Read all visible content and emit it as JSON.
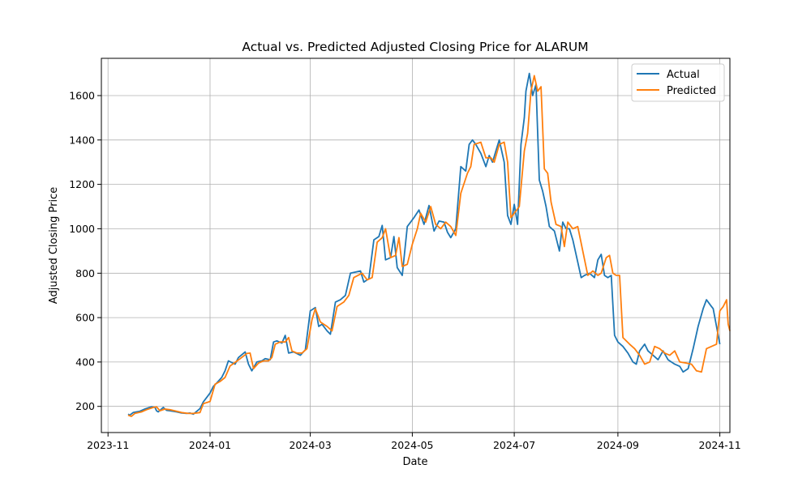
{
  "chart_data": {
    "type": "line",
    "title": "Actual vs. Predicted Adjusted Closing Price for ALARUM",
    "xlabel": "Date",
    "ylabel": "Adjusted Closing Price",
    "x_tick_labels": [
      "2023-11",
      "2024-01",
      "2024-03",
      "2024-05",
      "2024-07",
      "2024-09",
      "2024-11"
    ],
    "x_tick_dates": [
      "2023-11-01",
      "2024-01-01",
      "2024-03-01",
      "2024-05-01",
      "2024-07-01",
      "2024-09-01",
      "2024-11-01"
    ],
    "y_ticks": [
      200,
      400,
      600,
      800,
      1000,
      1200,
      1400,
      1600
    ],
    "xlim": [
      "2023-10-28",
      "2024-11-07"
    ],
    "ylim": [
      82,
      1768
    ],
    "grid": true,
    "legend_position": "top-right",
    "series": [
      {
        "name": "Actual",
        "color": "#1f77b4",
        "points": [
          [
            "2023-11-13",
            165
          ],
          [
            "2023-11-14",
            160
          ],
          [
            "2023-11-16",
            172
          ],
          [
            "2023-11-20",
            178
          ],
          [
            "2023-11-23",
            188
          ],
          [
            "2023-11-27",
            198
          ],
          [
            "2023-11-29",
            196
          ],
          [
            "2023-11-30",
            180
          ],
          [
            "2023-12-01",
            175
          ],
          [
            "2023-12-04",
            195
          ],
          [
            "2023-12-06",
            182
          ],
          [
            "2023-12-08",
            180
          ],
          [
            "2023-12-12",
            175
          ],
          [
            "2023-12-15",
            170
          ],
          [
            "2023-12-18",
            168
          ],
          [
            "2023-12-20",
            170
          ],
          [
            "2023-12-22",
            165
          ],
          [
            "2023-12-26",
            190
          ],
          [
            "2023-12-28",
            220
          ],
          [
            "2024-01-01",
            260
          ],
          [
            "2024-01-03",
            290
          ],
          [
            "2024-01-05",
            305
          ],
          [
            "2024-01-08",
            330
          ],
          [
            "2024-01-10",
            360
          ],
          [
            "2024-01-12",
            405
          ],
          [
            "2024-01-16",
            390
          ],
          [
            "2024-01-18",
            420
          ],
          [
            "2024-01-22",
            445
          ],
          [
            "2024-01-24",
            390
          ],
          [
            "2024-01-26",
            360
          ],
          [
            "2024-01-29",
            400
          ],
          [
            "2024-02-01",
            405
          ],
          [
            "2024-02-03",
            415
          ],
          [
            "2024-02-06",
            410
          ],
          [
            "2024-02-08",
            490
          ],
          [
            "2024-02-10",
            495
          ],
          [
            "2024-02-13",
            485
          ],
          [
            "2024-02-15",
            520
          ],
          [
            "2024-02-17",
            440
          ],
          [
            "2024-02-20",
            445
          ],
          [
            "2024-02-24",
            430
          ],
          [
            "2024-02-27",
            455
          ],
          [
            "2024-03-01",
            630
          ],
          [
            "2024-03-04",
            645
          ],
          [
            "2024-03-06",
            560
          ],
          [
            "2024-03-08",
            570
          ],
          [
            "2024-03-11",
            540
          ],
          [
            "2024-03-13",
            525
          ],
          [
            "2024-03-16",
            670
          ],
          [
            "2024-03-19",
            680
          ],
          [
            "2024-03-22",
            700
          ],
          [
            "2024-03-25",
            800
          ],
          [
            "2024-03-28",
            805
          ],
          [
            "2024-03-31",
            810
          ],
          [
            "2024-04-02",
            760
          ],
          [
            "2024-04-05",
            775
          ],
          [
            "2024-04-08",
            950
          ],
          [
            "2024-04-11",
            965
          ],
          [
            "2024-04-13",
            1015
          ],
          [
            "2024-04-15",
            860
          ],
          [
            "2024-04-18",
            870
          ],
          [
            "2024-04-20",
            965
          ],
          [
            "2024-04-22",
            825
          ],
          [
            "2024-04-25",
            790
          ],
          [
            "2024-04-28",
            1010
          ],
          [
            "2024-05-02",
            1050
          ],
          [
            "2024-05-05",
            1085
          ],
          [
            "2024-05-08",
            1020
          ],
          [
            "2024-05-11",
            1105
          ],
          [
            "2024-05-14",
            990
          ],
          [
            "2024-05-17",
            1035
          ],
          [
            "2024-05-20",
            1030
          ],
          [
            "2024-05-22",
            985
          ],
          [
            "2024-05-24",
            960
          ],
          [
            "2024-05-27",
            1000
          ],
          [
            "2024-05-30",
            1280
          ],
          [
            "2024-06-02",
            1260
          ],
          [
            "2024-06-04",
            1380
          ],
          [
            "2024-06-06",
            1400
          ],
          [
            "2024-06-08",
            1380
          ],
          [
            "2024-06-11",
            1340
          ],
          [
            "2024-06-14",
            1280
          ],
          [
            "2024-06-16",
            1330
          ],
          [
            "2024-06-18",
            1300
          ],
          [
            "2024-06-20",
            1350
          ],
          [
            "2024-06-22",
            1400
          ],
          [
            "2024-06-25",
            1300
          ],
          [
            "2024-06-27",
            1060
          ],
          [
            "2024-06-29",
            1020
          ],
          [
            "2024-07-01",
            1110
          ],
          [
            "2024-07-03",
            1020
          ],
          [
            "2024-07-05",
            1380
          ],
          [
            "2024-07-07",
            1500
          ],
          [
            "2024-07-08",
            1620
          ],
          [
            "2024-07-10",
            1700
          ],
          [
            "2024-07-12",
            1600
          ],
          [
            "2024-07-14",
            1650
          ],
          [
            "2024-07-16",
            1220
          ],
          [
            "2024-07-18",
            1170
          ],
          [
            "2024-07-20",
            1100
          ],
          [
            "2024-07-22",
            1010
          ],
          [
            "2024-07-25",
            990
          ],
          [
            "2024-07-28",
            900
          ],
          [
            "2024-07-30",
            1030
          ],
          [
            "2024-08-01",
            1000
          ],
          [
            "2024-08-03",
            1000
          ],
          [
            "2024-08-05",
            950
          ],
          [
            "2024-08-08",
            850
          ],
          [
            "2024-08-10",
            780
          ],
          [
            "2024-08-12",
            790
          ],
          [
            "2024-08-15",
            800
          ],
          [
            "2024-08-18",
            780
          ],
          [
            "2024-08-20",
            860
          ],
          [
            "2024-08-22",
            885
          ],
          [
            "2024-08-24",
            790
          ],
          [
            "2024-08-26",
            780
          ],
          [
            "2024-08-28",
            790
          ],
          [
            "2024-08-30",
            520
          ],
          [
            "2024-09-01",
            490
          ],
          [
            "2024-09-04",
            470
          ],
          [
            "2024-09-07",
            440
          ],
          [
            "2024-09-10",
            400
          ],
          [
            "2024-09-12",
            390
          ],
          [
            "2024-09-14",
            450
          ],
          [
            "2024-09-17",
            480
          ],
          [
            "2024-09-19",
            450
          ],
          [
            "2024-09-22",
            430
          ],
          [
            "2024-09-25",
            410
          ],
          [
            "2024-09-28",
            450
          ],
          [
            "2024-10-01",
            410
          ],
          [
            "2024-10-05",
            390
          ],
          [
            "2024-10-08",
            380
          ],
          [
            "2024-10-10",
            355
          ],
          [
            "2024-10-13",
            370
          ],
          [
            "2024-10-16",
            460
          ],
          [
            "2024-10-19",
            560
          ],
          [
            "2024-10-22",
            640
          ],
          [
            "2024-10-24",
            680
          ],
          [
            "2024-10-27",
            650
          ],
          [
            "2024-10-28",
            640
          ],
          [
            "2024-10-30",
            560
          ],
          [
            "2024-11-01",
            480
          ]
        ]
      },
      {
        "name": "Predicted",
        "color": "#ff7f0e",
        "points": [
          [
            "2023-11-13",
            160
          ],
          [
            "2023-11-15",
            155
          ],
          [
            "2023-11-17",
            168
          ],
          [
            "2023-11-21",
            175
          ],
          [
            "2023-11-24",
            185
          ],
          [
            "2023-11-28",
            195
          ],
          [
            "2023-11-30",
            198
          ],
          [
            "2023-12-02",
            180
          ],
          [
            "2023-12-05",
            188
          ],
          [
            "2023-12-08",
            185
          ],
          [
            "2023-12-12",
            178
          ],
          [
            "2023-12-15",
            172
          ],
          [
            "2023-12-19",
            168
          ],
          [
            "2023-12-22",
            168
          ],
          [
            "2023-12-26",
            172
          ],
          [
            "2023-12-28",
            212
          ],
          [
            "2024-01-01",
            222
          ],
          [
            "2024-01-04",
            300
          ],
          [
            "2024-01-07",
            312
          ],
          [
            "2024-01-10",
            330
          ],
          [
            "2024-01-13",
            382
          ],
          [
            "2024-01-16",
            398
          ],
          [
            "2024-01-19",
            415
          ],
          [
            "2024-01-23",
            438
          ],
          [
            "2024-01-25",
            440
          ],
          [
            "2024-01-27",
            370
          ],
          [
            "2024-01-30",
            395
          ],
          [
            "2024-02-02",
            405
          ],
          [
            "2024-02-05",
            405
          ],
          [
            "2024-02-07",
            420
          ],
          [
            "2024-02-09",
            480
          ],
          [
            "2024-02-12",
            490
          ],
          [
            "2024-02-15",
            490
          ],
          [
            "2024-02-17",
            510
          ],
          [
            "2024-02-19",
            450
          ],
          [
            "2024-02-22",
            440
          ],
          [
            "2024-02-25",
            440
          ],
          [
            "2024-02-28",
            460
          ],
          [
            "2024-03-02",
            590
          ],
          [
            "2024-03-04",
            640
          ],
          [
            "2024-03-07",
            580
          ],
          [
            "2024-03-11",
            560
          ],
          [
            "2024-03-14",
            540
          ],
          [
            "2024-03-17",
            650
          ],
          [
            "2024-03-21",
            670
          ],
          [
            "2024-03-24",
            700
          ],
          [
            "2024-03-27",
            780
          ],
          [
            "2024-04-01",
            800
          ],
          [
            "2024-04-04",
            770
          ],
          [
            "2024-04-07",
            780
          ],
          [
            "2024-04-10",
            940
          ],
          [
            "2024-04-13",
            960
          ],
          [
            "2024-04-15",
            1000
          ],
          [
            "2024-04-18",
            870
          ],
          [
            "2024-04-21",
            880
          ],
          [
            "2024-04-23",
            960
          ],
          [
            "2024-04-25",
            830
          ],
          [
            "2024-04-28",
            840
          ],
          [
            "2024-05-01",
            930
          ],
          [
            "2024-05-04",
            1000
          ],
          [
            "2024-05-06",
            1070
          ],
          [
            "2024-05-09",
            1030
          ],
          [
            "2024-05-12",
            1100
          ],
          [
            "2024-05-15",
            1020
          ],
          [
            "2024-05-18",
            1000
          ],
          [
            "2024-05-21",
            1030
          ],
          [
            "2024-05-24",
            1010
          ],
          [
            "2024-05-27",
            970
          ],
          [
            "2024-05-30",
            1160
          ],
          [
            "2024-06-03",
            1250
          ],
          [
            "2024-06-05",
            1280
          ],
          [
            "2024-06-07",
            1380
          ],
          [
            "2024-06-11",
            1390
          ],
          [
            "2024-06-14",
            1320
          ],
          [
            "2024-06-17",
            1320
          ],
          [
            "2024-06-19",
            1300
          ],
          [
            "2024-06-22",
            1380
          ],
          [
            "2024-06-25",
            1390
          ],
          [
            "2024-06-27",
            1300
          ],
          [
            "2024-06-29",
            1050
          ],
          [
            "2024-07-01",
            1070
          ],
          [
            "2024-07-04",
            1100
          ],
          [
            "2024-07-07",
            1350
          ],
          [
            "2024-07-09",
            1430
          ],
          [
            "2024-07-11",
            1620
          ],
          [
            "2024-07-13",
            1690
          ],
          [
            "2024-07-15",
            1620
          ],
          [
            "2024-07-17",
            1640
          ],
          [
            "2024-07-19",
            1270
          ],
          [
            "2024-07-21",
            1250
          ],
          [
            "2024-07-23",
            1120
          ],
          [
            "2024-07-26",
            1020
          ],
          [
            "2024-07-29",
            1010
          ],
          [
            "2024-07-31",
            920
          ],
          [
            "2024-08-02",
            1030
          ],
          [
            "2024-08-05",
            1000
          ],
          [
            "2024-08-08",
            1010
          ],
          [
            "2024-08-11",
            900
          ],
          [
            "2024-08-14",
            790
          ],
          [
            "2024-08-17",
            810
          ],
          [
            "2024-08-20",
            790
          ],
          [
            "2024-08-22",
            800
          ],
          [
            "2024-08-25",
            870
          ],
          [
            "2024-08-27",
            880
          ],
          [
            "2024-08-29",
            800
          ],
          [
            "2024-08-31",
            790
          ],
          [
            "2024-09-02",
            790
          ],
          [
            "2024-09-04",
            510
          ],
          [
            "2024-09-08",
            480
          ],
          [
            "2024-09-11",
            460
          ],
          [
            "2024-09-14",
            430
          ],
          [
            "2024-09-17",
            390
          ],
          [
            "2024-09-20",
            400
          ],
          [
            "2024-09-23",
            470
          ],
          [
            "2024-09-26",
            460
          ],
          [
            "2024-09-29",
            440
          ],
          [
            "2024-10-02",
            430
          ],
          [
            "2024-10-05",
            450
          ],
          [
            "2024-10-08",
            400
          ],
          [
            "2024-10-12",
            395
          ],
          [
            "2024-10-15",
            390
          ],
          [
            "2024-10-18",
            360
          ],
          [
            "2024-10-21",
            355
          ],
          [
            "2024-10-24",
            460
          ],
          [
            "2024-10-27",
            470
          ],
          [
            "2024-10-30",
            480
          ],
          [
            "2024-11-01",
            630
          ],
          [
            "2024-11-03",
            650
          ],
          [
            "2024-11-05",
            680
          ],
          [
            "2024-11-06",
            570
          ],
          [
            "2024-11-07",
            540
          ]
        ]
      }
    ]
  }
}
